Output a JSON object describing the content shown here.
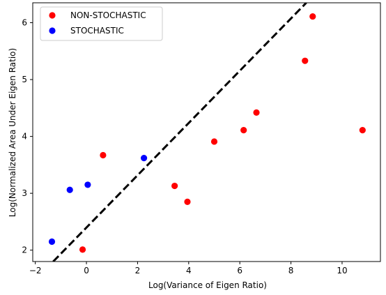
{
  "chart_data": {
    "type": "scatter",
    "title": "",
    "xlabel": "Log(Variance of Eigen Ratio)",
    "ylabel": "Log(Normalized Area Under Eigen Ratio)",
    "xlim": [
      -2.1,
      11.5
    ],
    "ylim": [
      1.8,
      6.35
    ],
    "xticks": [
      -2,
      0,
      2,
      4,
      6,
      8,
      10
    ],
    "yticks": [
      2,
      3,
      4,
      5,
      6
    ],
    "grid": false,
    "legend_position": "top-left",
    "series": [
      {
        "name": "NON-STOCHASTIC",
        "color": "#ff0000",
        "points": [
          {
            "x": -0.15,
            "y": 2.01
          },
          {
            "x": 0.65,
            "y": 3.67
          },
          {
            "x": 3.45,
            "y": 3.13
          },
          {
            "x": 3.95,
            "y": 2.85
          },
          {
            "x": 5.0,
            "y": 3.91
          },
          {
            "x": 6.15,
            "y": 4.11
          },
          {
            "x": 6.65,
            "y": 4.42
          },
          {
            "x": 8.55,
            "y": 5.33
          },
          {
            "x": 8.85,
            "y": 6.11
          },
          {
            "x": 10.8,
            "y": 4.11
          }
        ]
      },
      {
        "name": "STOCHASTIC",
        "color": "#0000ff",
        "points": [
          {
            "x": -1.35,
            "y": 2.15
          },
          {
            "x": -0.65,
            "y": 3.06
          },
          {
            "x": 0.05,
            "y": 3.15
          },
          {
            "x": 2.25,
            "y": 3.62
          }
        ]
      }
    ],
    "reference_line": {
      "style": "dashed",
      "color": "#000000",
      "from": {
        "x": -1.3,
        "y": 1.8
      },
      "to": {
        "x": 8.6,
        "y": 6.35
      }
    }
  }
}
